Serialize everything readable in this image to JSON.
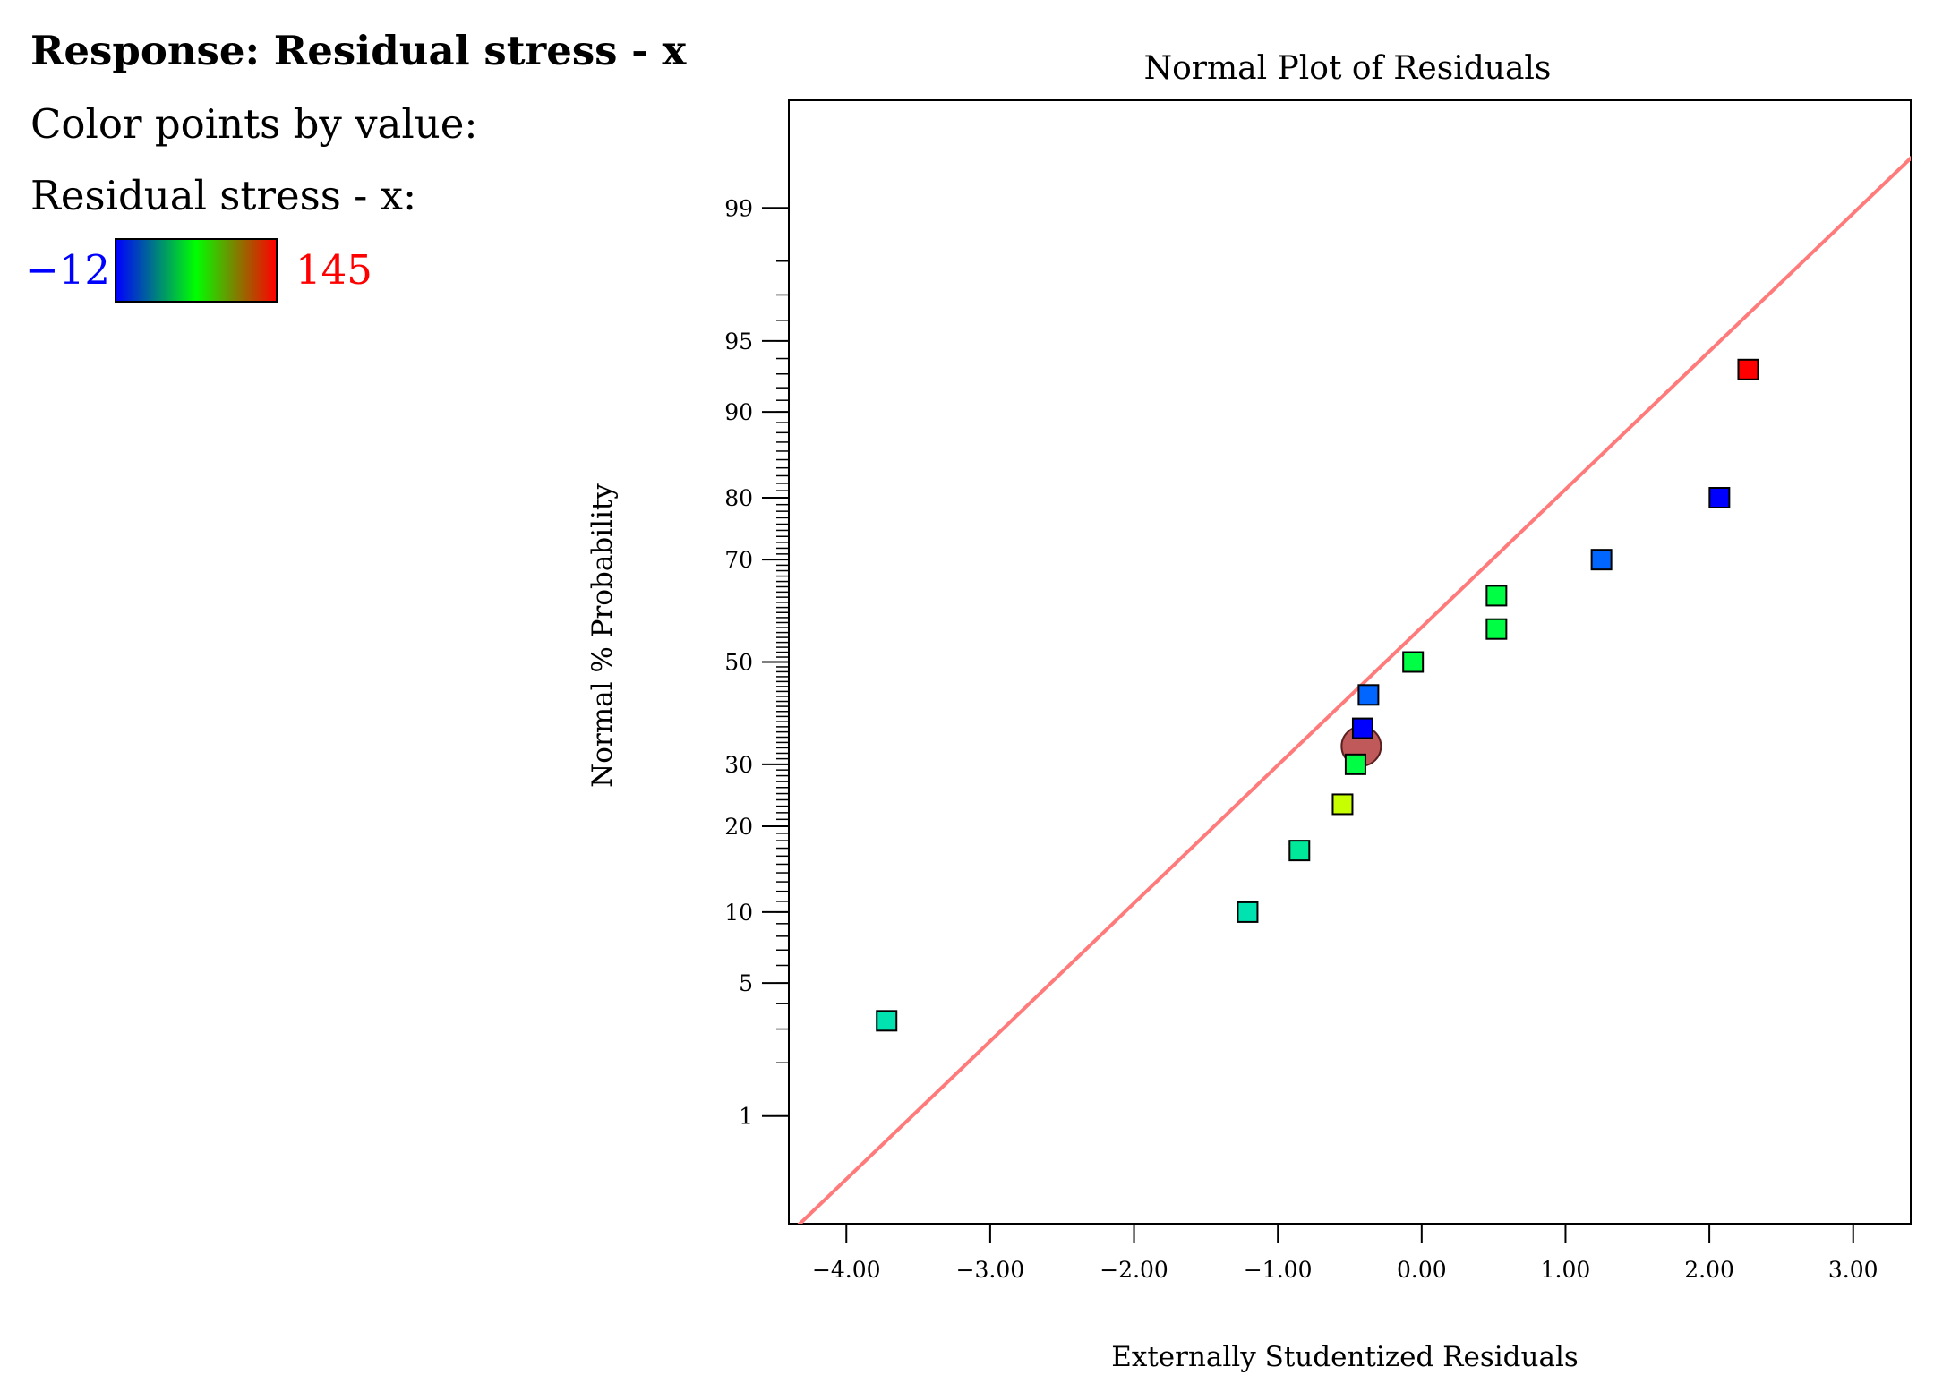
{
  "legend": {
    "response_title": "Response: Residual stress - x",
    "color_by_label": "Color points by value:",
    "variable_label": "Residual stress - x:",
    "scale_min": "−12",
    "scale_max": "145",
    "scale_min_color": "#0000ff",
    "scale_max_color": "#ff0000"
  },
  "colors": {
    "gradient": [
      "#0000ff",
      "#00ff00",
      "#ff0000"
    ],
    "fit_line": "#ff7b7b",
    "highlight_marker": "#c05a5a"
  },
  "chart_data": {
    "type": "scatter",
    "title": "Normal Plot of Residuals",
    "xlabel": "Externally Studentized Residuals",
    "ylabel": "Normal % Probability",
    "xlim": [
      -4.4,
      3.4
    ],
    "ylim_probability": [
      0.2,
      99.8
    ],
    "x_ticks": [
      "−4.00",
      "−3.00",
      "−2.00",
      "−1.00",
      "0.00",
      "1.00",
      "2.00",
      "3.00"
    ],
    "x_tick_values": [
      -4,
      -3,
      -2,
      -1,
      0,
      1,
      2,
      3
    ],
    "y_ticks": [
      "1",
      "5",
      "10",
      "20",
      "30",
      "50",
      "70",
      "80",
      "90",
      "95",
      "99"
    ],
    "y_tick_values": [
      1,
      5,
      10,
      20,
      30,
      50,
      70,
      80,
      90,
      95,
      99
    ],
    "fit_line": {
      "x0": -4.45,
      "p0": 0.15,
      "x1": 3.5,
      "p1": 99.6
    },
    "points": [
      {
        "x": -3.72,
        "p": 3.3,
        "color": "#00e2b0"
      },
      {
        "x": -1.21,
        "p": 10.0,
        "color": "#00e2b0"
      },
      {
        "x": -0.85,
        "p": 16.7,
        "color": "#00e89a"
      },
      {
        "x": -0.55,
        "p": 23.3,
        "color": "#c8ff00"
      },
      {
        "x": -0.46,
        "p": 30.0,
        "color": "#00ff44"
      },
      {
        "x": -0.41,
        "p": 36.7,
        "color": "#0000ff"
      },
      {
        "x": -0.37,
        "p": 43.3,
        "color": "#0066ff"
      },
      {
        "x": -0.06,
        "p": 50.0,
        "color": "#00ff44"
      },
      {
        "x": 0.52,
        "p": 56.7,
        "color": "#00ff44"
      },
      {
        "x": 0.52,
        "p": 63.3,
        "color": "#00ff44"
      },
      {
        "x": 1.25,
        "p": 70.0,
        "color": "#0066ff"
      },
      {
        "x": 2.07,
        "p": 80.0,
        "color": "#0000ff"
      },
      {
        "x": 2.27,
        "p": 93.3,
        "color": "#ff0000"
      }
    ],
    "highlight_point": {
      "x": -0.42,
      "p": 33.3,
      "color": "#c05a5a"
    }
  }
}
